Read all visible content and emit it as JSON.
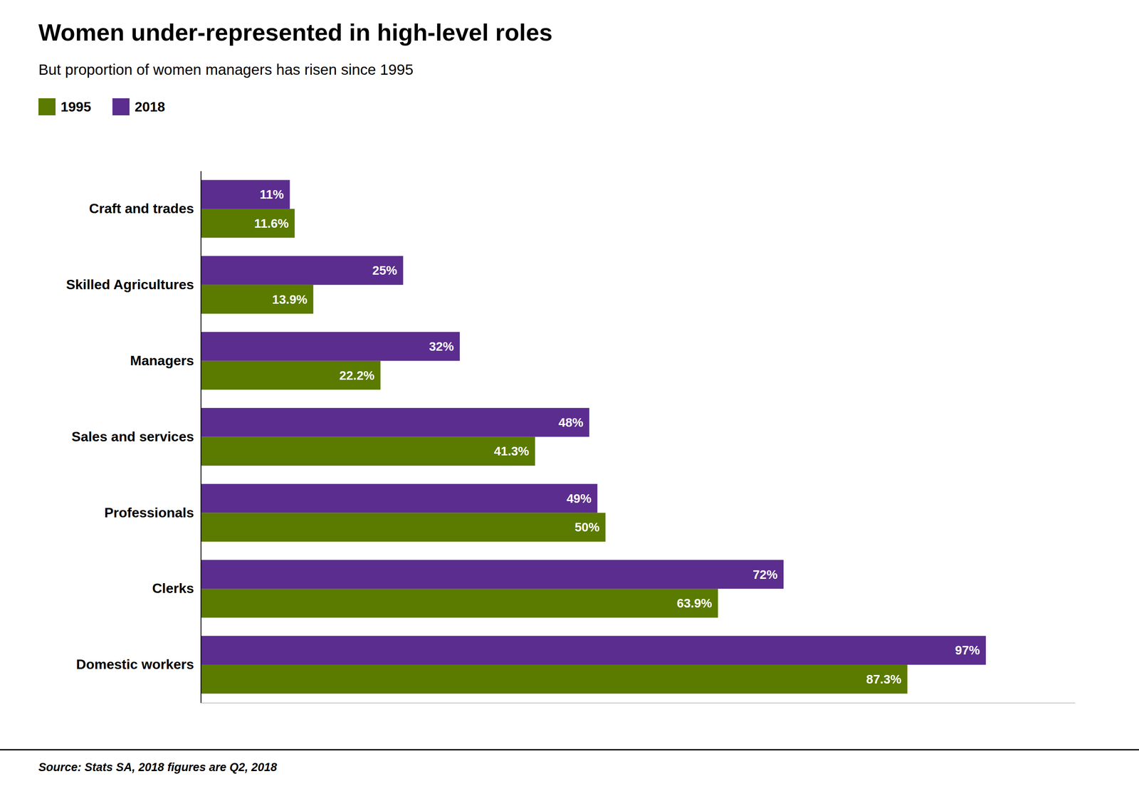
{
  "chart_data": {
    "type": "bar",
    "orientation": "horizontal",
    "title": "Women under-represented in high-level roles",
    "subtitle": "But proportion of women managers has risen since 1995",
    "source": "Source: Stats SA, 2018 figures are Q2, 2018",
    "categories": [
      "Domestic workers",
      "Clerks",
      "Professionals",
      "Sales and services",
      "Managers",
      "Skilled Agricultures",
      "Craft and trades"
    ],
    "series": [
      {
        "name": "1995",
        "color": "#5a7a00",
        "values": [
          87.3,
          63.9,
          50.0,
          41.3,
          22.2,
          13.9,
          11.6
        ],
        "value_labels": [
          "87.3%",
          "63.9%",
          "50%",
          "41.3%",
          "22.2%",
          "13.9%",
          "11.6%"
        ]
      },
      {
        "name": "2018",
        "color": "#5b2d8e",
        "values": [
          97.0,
          72.0,
          49.0,
          48.0,
          32.0,
          25.0,
          11.0
        ],
        "value_labels": [
          "97%",
          "72%",
          "49%",
          "48%",
          "32%",
          "25%",
          "11%"
        ]
      }
    ],
    "xlim": [
      0,
      108
    ],
    "data_labels": true,
    "tick_labels": "y",
    "grid": false,
    "legend": "top-left"
  }
}
